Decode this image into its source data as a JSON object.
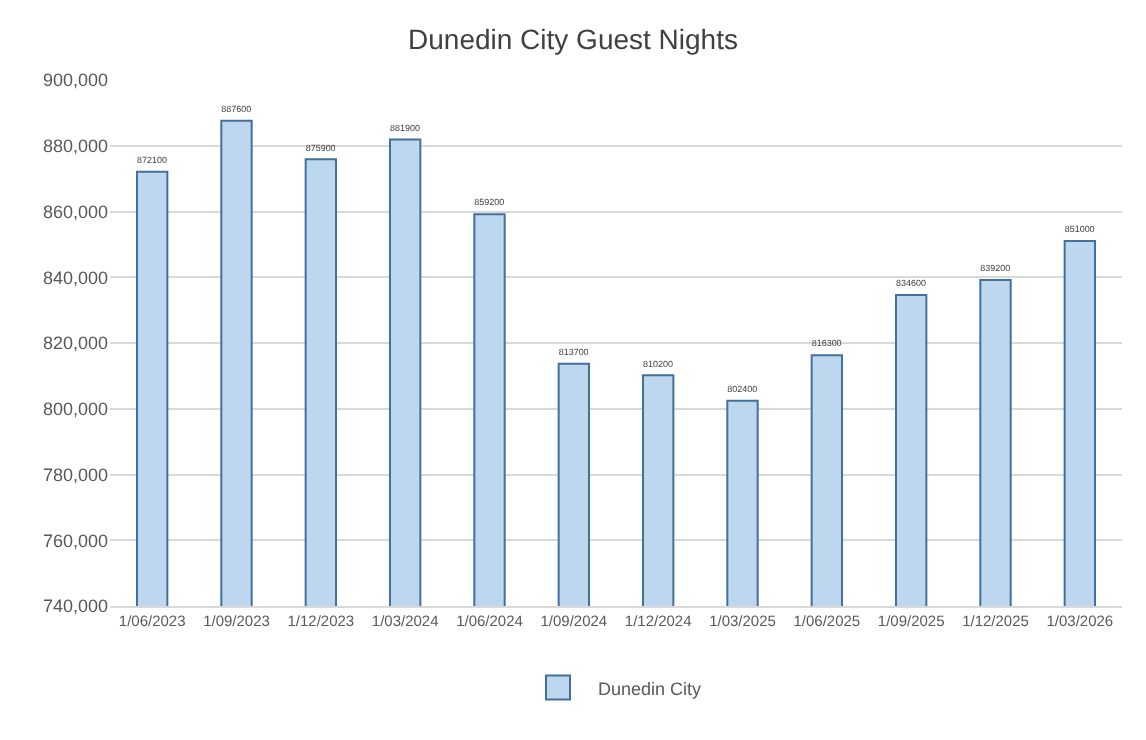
{
  "chart_data": {
    "type": "bar",
    "title": "Dunedin City Guest Nights",
    "categories": [
      "1/06/2023",
      "1/09/2023",
      "1/12/2023",
      "1/03/2024",
      "1/06/2024",
      "1/09/2024",
      "1/12/2024",
      "1/03/2025",
      "1/06/2025",
      "1/09/2025",
      "1/12/2025",
      "1/03/2026"
    ],
    "series": [
      {
        "name": "Dunedin City",
        "color": "#bdd7ee",
        "values": [
          872100,
          887600,
          875900,
          881900,
          859200,
          813700,
          810200,
          802400,
          816300,
          834600,
          839200,
          851000
        ]
      }
    ],
    "ylim": [
      740000,
      900000
    ],
    "yticks": [
      {
        "value": 740000,
        "label": "740,000"
      },
      {
        "value": 760000,
        "label": "760,000"
      },
      {
        "value": 780000,
        "label": "780,000"
      },
      {
        "value": 800000,
        "label": "800,000"
      },
      {
        "value": 820000,
        "label": "820,000"
      },
      {
        "value": 840000,
        "label": "840,000"
      },
      {
        "value": 860000,
        "label": "860,000"
      },
      {
        "value": 880000,
        "label": "880,000"
      },
      {
        "value": 900000,
        "label": "900,000"
      }
    ],
    "grid": "y",
    "legend": "bottom",
    "data_labels": true
  }
}
